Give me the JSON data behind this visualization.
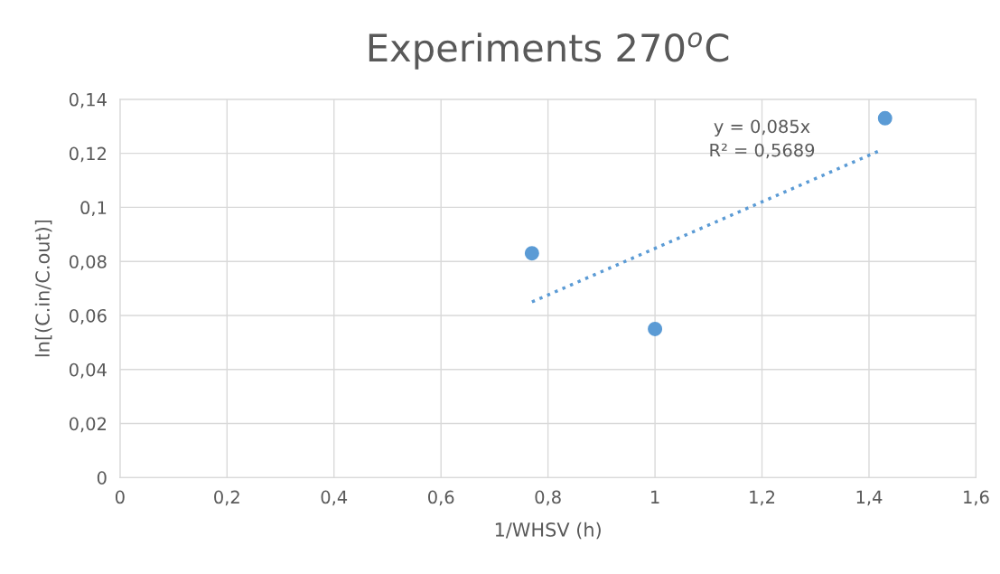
{
  "chart_data": {
    "type": "scatter",
    "title": "Experiments 270$^{o}$C",
    "xlabel": "1/WHSV (h)",
    "ylabel": "ln[(C.in/C.out)]",
    "series": [
      {
        "color": "#5b9bd5",
        "x": [
          0.77,
          1.0,
          1.43
        ],
        "values": [
          0.083,
          0.055,
          0.133
        ],
        "marker": "circle"
      },
      {
        "type": "line",
        "color": "#5b9bd5",
        "x": [
          0.77,
          1.42
        ],
        "values": [
          0.065,
          0.121
        ],
        "line_style": "dotted",
        "marker": "none"
      }
    ],
    "annotations": [
      "y = 0,085x\nR² = 0,5689"
    ],
    "xlim": [
      0,
      1.6
    ],
    "ylim": [
      0,
      0.14
    ],
    "xticks": [
      0,
      {
        "value": 0.2,
        "label": "0,2"
      },
      {
        "value": 0.4,
        "label": "0,4"
      },
      {
        "value": 0.6,
        "label": "0,6"
      },
      {
        "value": 0.8,
        "label": "0,8"
      },
      1,
      {
        "value": 1.2,
        "label": "1,2"
      },
      {
        "value": 1.4,
        "label": "1,4"
      },
      {
        "value": 1.6,
        "label": "1,6"
      }
    ],
    "yticks": [
      0,
      {
        "value": 0.02,
        "label": "0,02"
      },
      {
        "value": 0.04,
        "label": "0,04"
      },
      {
        "value": 0.06,
        "label": "0,06"
      },
      {
        "value": 0.08,
        "label": "0,08"
      },
      {
        "value": 0.1,
        "label": "0,1"
      },
      {
        "value": 0.12,
        "label": "0,12"
      },
      {
        "value": 0.14,
        "label": "0,14"
      }
    ],
    "grid": true
  }
}
